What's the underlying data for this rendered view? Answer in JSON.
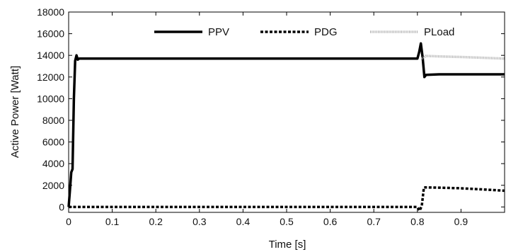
{
  "chart_data": {
    "type": "line",
    "title": "",
    "xlabel": "Time [s]",
    "ylabel": "Active Power [Watt]",
    "xlim": [
      0,
      1.0
    ],
    "ylim": [
      -500,
      18000
    ],
    "x_ticks": [
      0,
      0.1,
      0.2,
      0.3,
      0.4,
      0.5,
      0.6,
      0.7,
      0.8,
      0.9
    ],
    "x_tick_labels": [
      "0",
      "0.1",
      "0.2",
      "0.3",
      "0.4",
      "0.5",
      "0.6",
      "0.7",
      "0.8",
      "0.9"
    ],
    "y_ticks": [
      0,
      2000,
      4000,
      6000,
      8000,
      10000,
      12000,
      14000,
      16000,
      18000
    ],
    "y_tick_labels": [
      "0",
      "2000",
      "4000",
      "6000",
      "8000",
      "10000",
      "12000",
      "14000",
      "16000",
      "18000"
    ],
    "grid": false,
    "legend_position": "top-center",
    "series": [
      {
        "name": "PPV",
        "style": "solid",
        "color": "#000000",
        "x": [
          0,
          0.003,
          0.006,
          0.009,
          0.012,
          0.015,
          0.018,
          0.021,
          0.024,
          0.03,
          0.1,
          0.2,
          0.3,
          0.4,
          0.5,
          0.6,
          0.7,
          0.8,
          0.804,
          0.808,
          0.812,
          0.816,
          0.82,
          0.85,
          0.9,
          0.95,
          1.0
        ],
        "y": [
          0,
          1500,
          3200,
          3500,
          10000,
          13500,
          14000,
          13600,
          13700,
          13700,
          13700,
          13700,
          13700,
          13700,
          13700,
          13700,
          13700,
          13700,
          14300,
          15100,
          13800,
          12000,
          12200,
          12250,
          12250,
          12250,
          12250
        ]
      },
      {
        "name": "PDG",
        "style": "dashed",
        "color": "#000000",
        "x": [
          0,
          0.1,
          0.2,
          0.3,
          0.4,
          0.5,
          0.6,
          0.7,
          0.8,
          0.805,
          0.81,
          0.815,
          0.82,
          0.85,
          0.9,
          0.95,
          1.0
        ],
        "y": [
          0,
          0,
          0,
          0,
          0,
          0,
          0,
          0,
          0,
          -350,
          100,
          1800,
          1800,
          1780,
          1720,
          1620,
          1500
        ]
      },
      {
        "name": "PLoad",
        "style": "dotted",
        "color": "#aaaaaa",
        "x": [
          0.81,
          0.82,
          0.85,
          0.9,
          0.95,
          1.0
        ],
        "y": [
          13700,
          13950,
          13900,
          13850,
          13780,
          13700
        ]
      }
    ]
  }
}
